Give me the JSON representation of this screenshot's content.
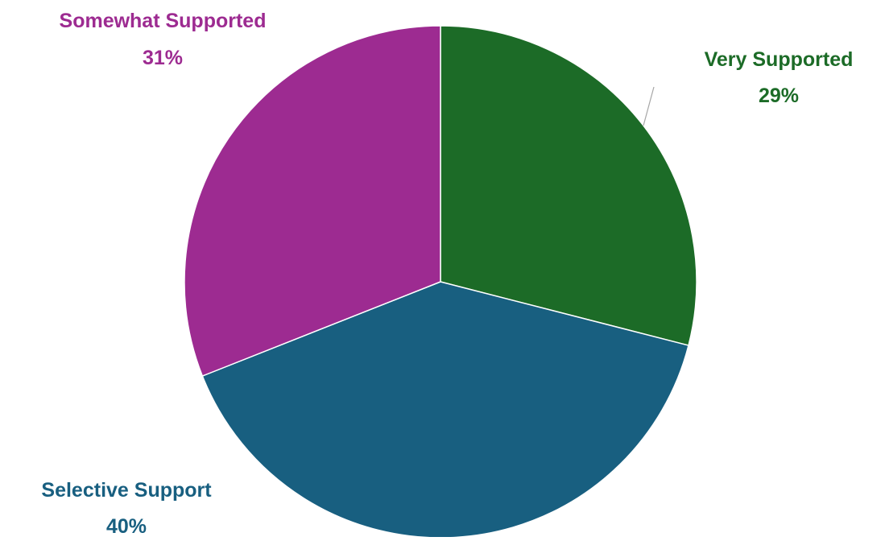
{
  "chart_data": {
    "type": "pie",
    "title": "",
    "slices": [
      {
        "label": "Very Supported",
        "value": 29,
        "value_label": "29%",
        "color": "#1c6b27"
      },
      {
        "label": "Selective Support",
        "value": 40,
        "value_label": "40%",
        "color": "#185f80"
      },
      {
        "label": "Somewhat Supported",
        "value": 31,
        "value_label": "31%",
        "color": "#9d2b91"
      }
    ],
    "start": "12 o'clock",
    "direction": "clockwise",
    "legend": "none",
    "data_labels": "outside, category name and percentage in slice color"
  }
}
